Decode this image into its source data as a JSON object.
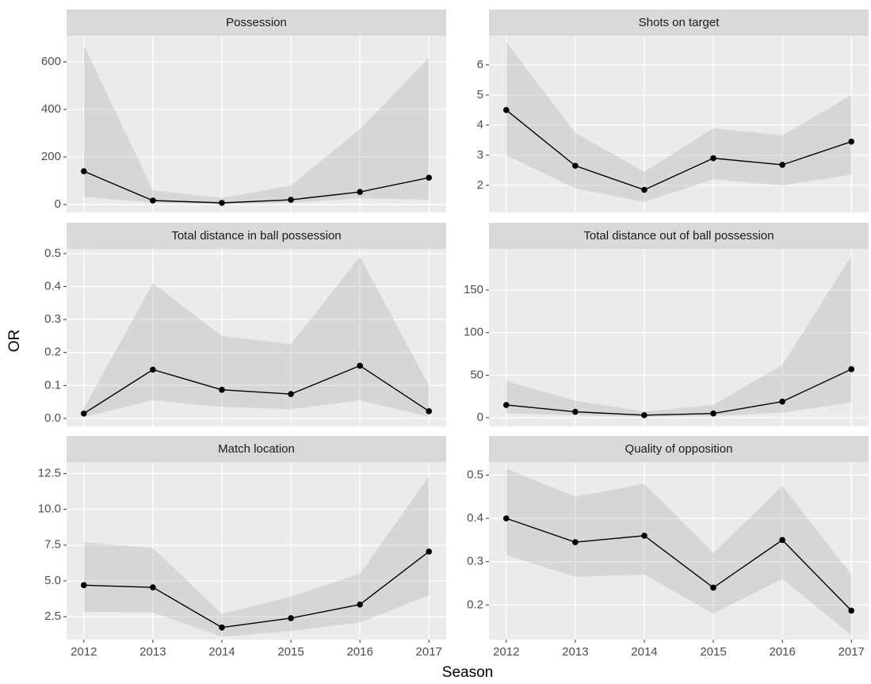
{
  "axis_labels": {
    "x": "Season",
    "y": "OR"
  },
  "chart_data": [
    {
      "type": "line",
      "title": "Possession",
      "x": [
        2012,
        2013,
        2014,
        2015,
        2016,
        2017
      ],
      "values": [
        140,
        17,
        7,
        20,
        53,
        113
      ],
      "lower": [
        33,
        7,
        2,
        7,
        27,
        20
      ],
      "upper": [
        670,
        60,
        27,
        80,
        317,
        617
      ],
      "color": "#000000",
      "band_color": "#999999",
      "xlim": [
        2011.75,
        2017.25
      ],
      "xticks": [
        2012,
        2013,
        2014,
        2015,
        2016,
        2017
      ],
      "ylim": [
        -33,
        710
      ],
      "yticks": [
        0,
        200,
        400,
        600
      ],
      "grid": true
    },
    {
      "type": "line",
      "title": "Shots on target",
      "x": [
        2012,
        2013,
        2014,
        2015,
        2016,
        2017
      ],
      "values": [
        4.5,
        2.65,
        1.85,
        2.9,
        2.68,
        3.45
      ],
      "lower": [
        3.0,
        1.9,
        1.45,
        2.2,
        2.0,
        2.35
      ],
      "upper": [
        6.75,
        3.75,
        2.45,
        3.9,
        3.65,
        5.0
      ],
      "color": "#000000",
      "band_color": "#999999",
      "xlim": [
        2011.75,
        2017.25
      ],
      "xticks": [
        2012,
        2013,
        2014,
        2015,
        2016,
        2017
      ],
      "ylim": [
        1.1,
        6.97
      ],
      "yticks": [
        2,
        3,
        4,
        5,
        6
      ],
      "grid": true
    },
    {
      "type": "line",
      "title": "Total distance in ball possession",
      "x": [
        2012,
        2013,
        2014,
        2015,
        2016,
        2017
      ],
      "values": [
        0.015,
        0.148,
        0.087,
        0.074,
        0.16,
        0.022
      ],
      "lower": [
        0.005,
        0.055,
        0.035,
        0.028,
        0.055,
        0.005
      ],
      "upper": [
        0.03,
        0.41,
        0.25,
        0.225,
        0.49,
        0.1
      ],
      "color": "#000000",
      "band_color": "#999999",
      "xlim": [
        2011.75,
        2017.25
      ],
      "xticks": [
        2012,
        2013,
        2014,
        2015,
        2016,
        2017
      ],
      "ylim": [
        -0.024,
        0.514
      ],
      "yticks": [
        {
          "value": 0,
          "label": "0.0"
        },
        0.1,
        0.2,
        0.3,
        0.4,
        0.5
      ],
      "grid": true
    },
    {
      "type": "line",
      "title": "Total distance out of ball possession",
      "x": [
        2012,
        2013,
        2014,
        2015,
        2016,
        2017
      ],
      "values": [
        15,
        7,
        3,
        5,
        19,
        57
      ],
      "lower": [
        5,
        3,
        1,
        2,
        6,
        18
      ],
      "upper": [
        43,
        20,
        7,
        15,
        62,
        190
      ],
      "color": "#000000",
      "band_color": "#999999",
      "xlim": [
        2011.75,
        2017.25
      ],
      "xticks": [
        2012,
        2013,
        2014,
        2015,
        2016,
        2017
      ],
      "ylim": [
        -10.2,
        198.4
      ],
      "yticks": [
        0,
        50,
        100,
        150
      ],
      "grid": true
    },
    {
      "type": "line",
      "title": "Match location",
      "x": [
        2012,
        2013,
        2014,
        2015,
        2016,
        2017
      ],
      "values": [
        4.7,
        4.55,
        1.75,
        2.4,
        3.35,
        7.05
      ],
      "lower": [
        2.85,
        2.8,
        1.1,
        1.5,
        2.1,
        4.0
      ],
      "upper": [
        7.7,
        7.3,
        2.7,
        3.9,
        5.5,
        12.3
      ],
      "color": "#000000",
      "band_color": "#999999",
      "xlim": [
        2011.75,
        2017.25
      ],
      "xticks": [
        2012,
        2013,
        2014,
        2015,
        2016,
        2017
      ],
      "ylim": [
        0.9,
        13.3
      ],
      "yticks": [
        2.5,
        {
          "value": 5,
          "label": "5.0"
        },
        7.5,
        {
          "value": 10,
          "label": "10.0"
        },
        12.5
      ],
      "grid": true
    },
    {
      "type": "line",
      "title": "Quality of opposition",
      "x": [
        2012,
        2013,
        2014,
        2015,
        2016,
        2017
      ],
      "values": [
        0.4,
        0.345,
        0.36,
        0.24,
        0.35,
        0.187
      ],
      "lower": [
        0.315,
        0.265,
        0.27,
        0.18,
        0.26,
        0.13
      ],
      "upper": [
        0.515,
        0.45,
        0.48,
        0.32,
        0.475,
        0.27
      ],
      "color": "#000000",
      "band_color": "#999999",
      "xlim": [
        2011.75,
        2017.25
      ],
      "xticks": [
        2012,
        2013,
        2014,
        2015,
        2016,
        2017
      ],
      "ylim": [
        0.12,
        0.53
      ],
      "yticks": [
        0.2,
        0.3,
        0.4,
        0.5
      ],
      "grid": true
    }
  ]
}
